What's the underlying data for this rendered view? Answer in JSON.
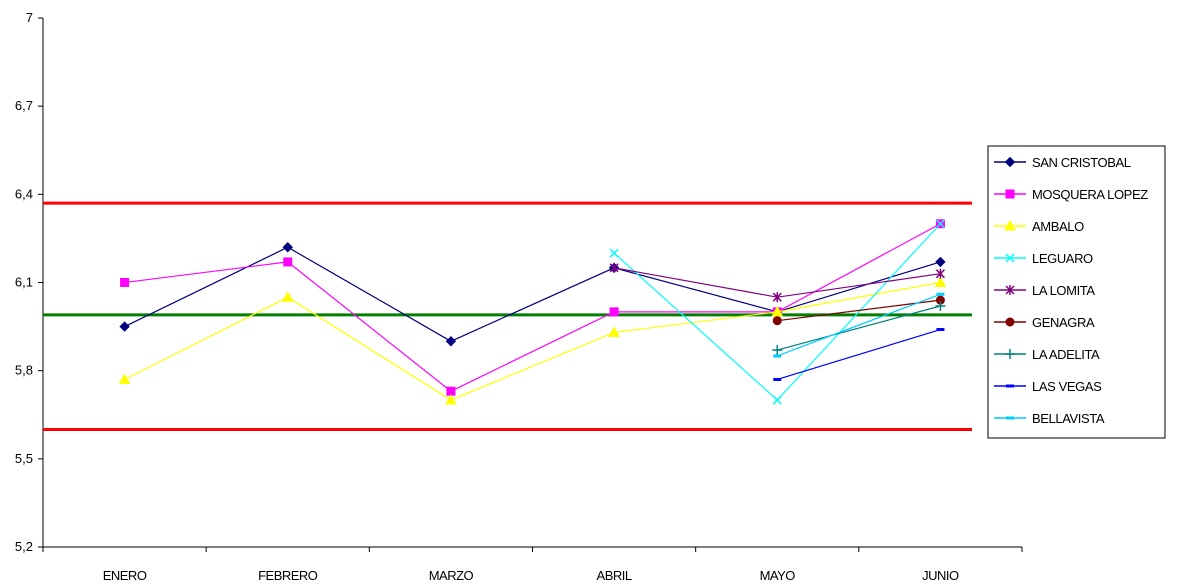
{
  "chart_data": {
    "type": "line",
    "categories": [
      "ENERO",
      "FEBRERO",
      "MARZO",
      "ABRIL",
      "MAYO",
      "JUNIO"
    ],
    "ylim": [
      5.2,
      7
    ],
    "yticks": [
      "5,2",
      "5,5",
      "5,8",
      "6,1",
      "6,4",
      "6,7",
      "7"
    ],
    "ytick_values": [
      5.2,
      5.5,
      5.8,
      6.1,
      6.4,
      6.7,
      7.0
    ],
    "grid": false,
    "legend_position": "right",
    "reference_lines": [
      {
        "value": 6.37,
        "color": "#ff0000"
      },
      {
        "value": 5.99,
        "color": "#008000"
      },
      {
        "value": 5.6,
        "color": "#ff0000"
      }
    ],
    "series": [
      {
        "name": "SAN CRISTOBAL",
        "color": "#000080",
        "marker": "diamond",
        "values": [
          5.95,
          6.22,
          5.9,
          6.15,
          6.0,
          6.17
        ]
      },
      {
        "name": "MOSQUERA LOPEZ",
        "color": "#ff00ff",
        "marker": "square",
        "values": [
          6.1,
          6.17,
          5.73,
          6.0,
          6.0,
          6.3
        ]
      },
      {
        "name": "AMBALO",
        "color": "#ffff00",
        "marker": "triangle",
        "values": [
          5.77,
          6.05,
          5.7,
          5.93,
          6.0,
          6.1
        ]
      },
      {
        "name": "LEGUARO",
        "color": "#00ffff",
        "marker": "x",
        "values": [
          null,
          null,
          null,
          6.2,
          5.7,
          6.3
        ]
      },
      {
        "name": "LA LOMITA",
        "color": "#800080",
        "marker": "star",
        "values": [
          null,
          null,
          null,
          6.15,
          6.05,
          6.13
        ]
      },
      {
        "name": "GENAGRA",
        "color": "#800000",
        "marker": "circle",
        "values": [
          null,
          null,
          null,
          null,
          5.97,
          6.04
        ]
      },
      {
        "name": "LA ADELITA",
        "color": "#008080",
        "marker": "plus",
        "values": [
          null,
          null,
          null,
          null,
          5.87,
          6.02
        ]
      },
      {
        "name": "LAS VEGAS",
        "color": "#0000ff",
        "marker": "dash",
        "values": [
          null,
          null,
          null,
          null,
          5.77,
          5.94
        ]
      },
      {
        "name": "BELLAVISTA",
        "color": "#00ccff",
        "marker": "dash",
        "values": [
          null,
          null,
          null,
          null,
          5.85,
          6.06
        ]
      }
    ]
  }
}
